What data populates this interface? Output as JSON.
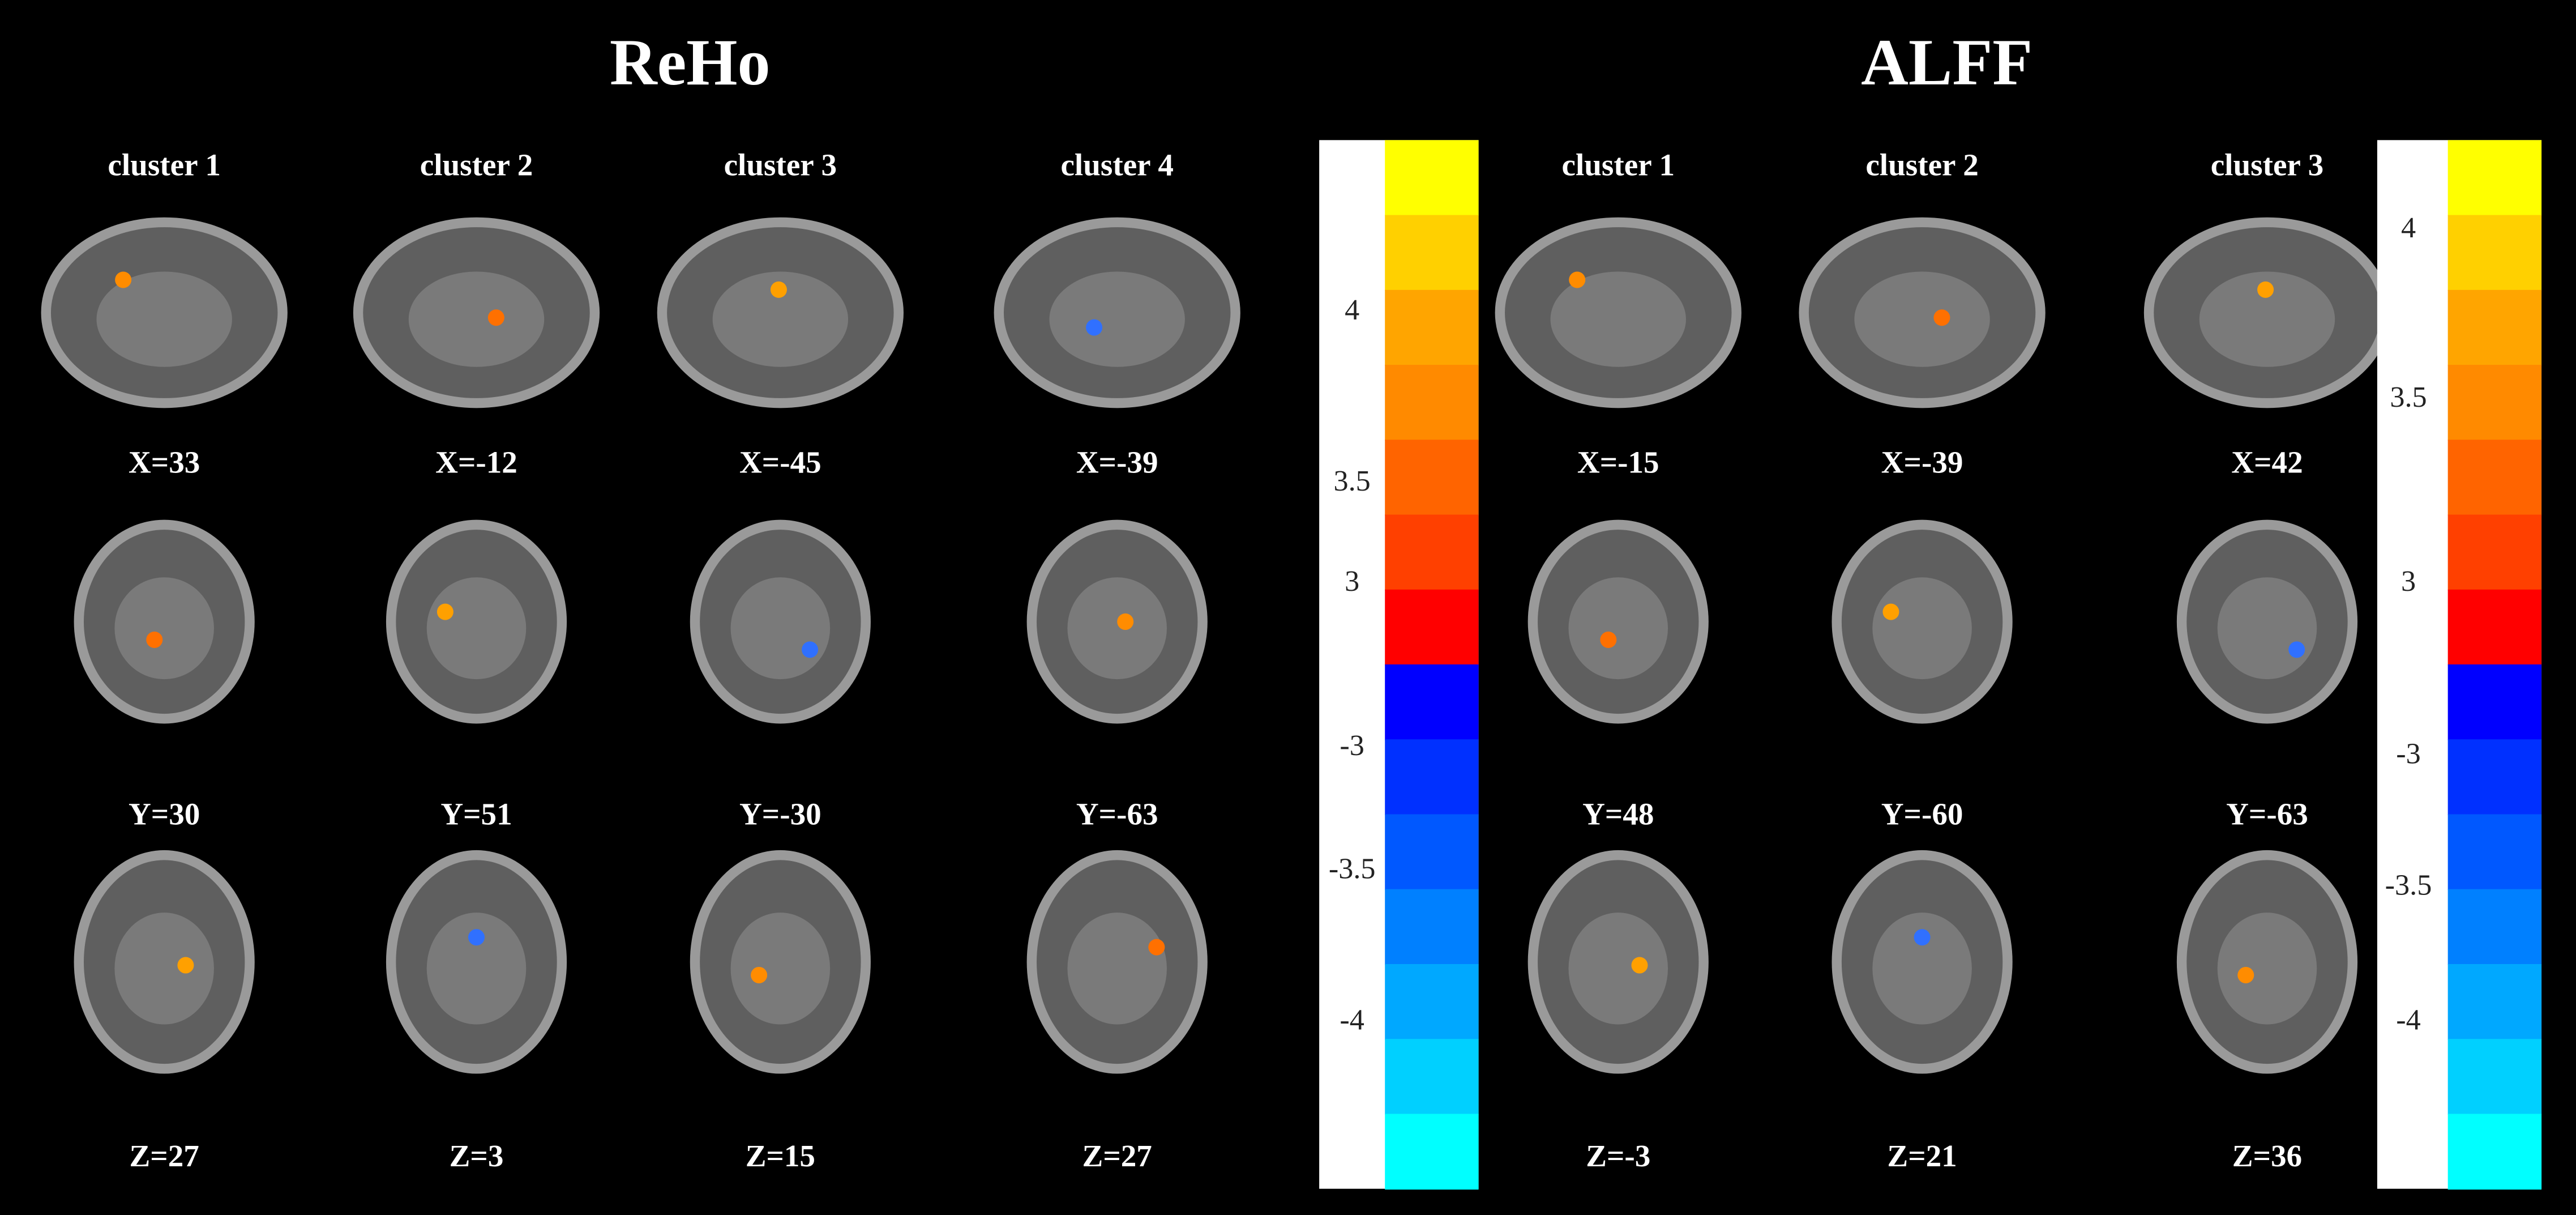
{
  "reho": {
    "title": "ReHo",
    "clusters": [
      {
        "label": "cluster 1",
        "sagittal": "X=33",
        "coronal": "Y=30",
        "axial": "Z=27"
      },
      {
        "label": "cluster 2",
        "sagittal": "X=-12",
        "coronal": "Y=51",
        "axial": "Z=3"
      },
      {
        "label": "cluster 3",
        "sagittal": "X=-45",
        "coronal": "Y=-30",
        "axial": "Z=15"
      },
      {
        "label": "cluster 4",
        "sagittal": "X=-39",
        "coronal": "Y=-63",
        "axial": "Z=27"
      }
    ]
  },
  "alff": {
    "title": "ALFF",
    "clusters": [
      {
        "label": "cluster 1",
        "sagittal": "X=-15",
        "coronal": "Y=48",
        "axial": "Z=-3"
      },
      {
        "label": "cluster 2",
        "sagittal": "X=-39",
        "coronal": "Y=-60",
        "axial": "Z=21"
      },
      {
        "label": "cluster 3",
        "sagittal": "X=42",
        "coronal": "Y=-63",
        "axial": "Z=36"
      }
    ]
  },
  "colorbar_labels": [
    "4",
    "3.5",
    "3",
    "-3",
    "-3.5",
    "-4"
  ]
}
